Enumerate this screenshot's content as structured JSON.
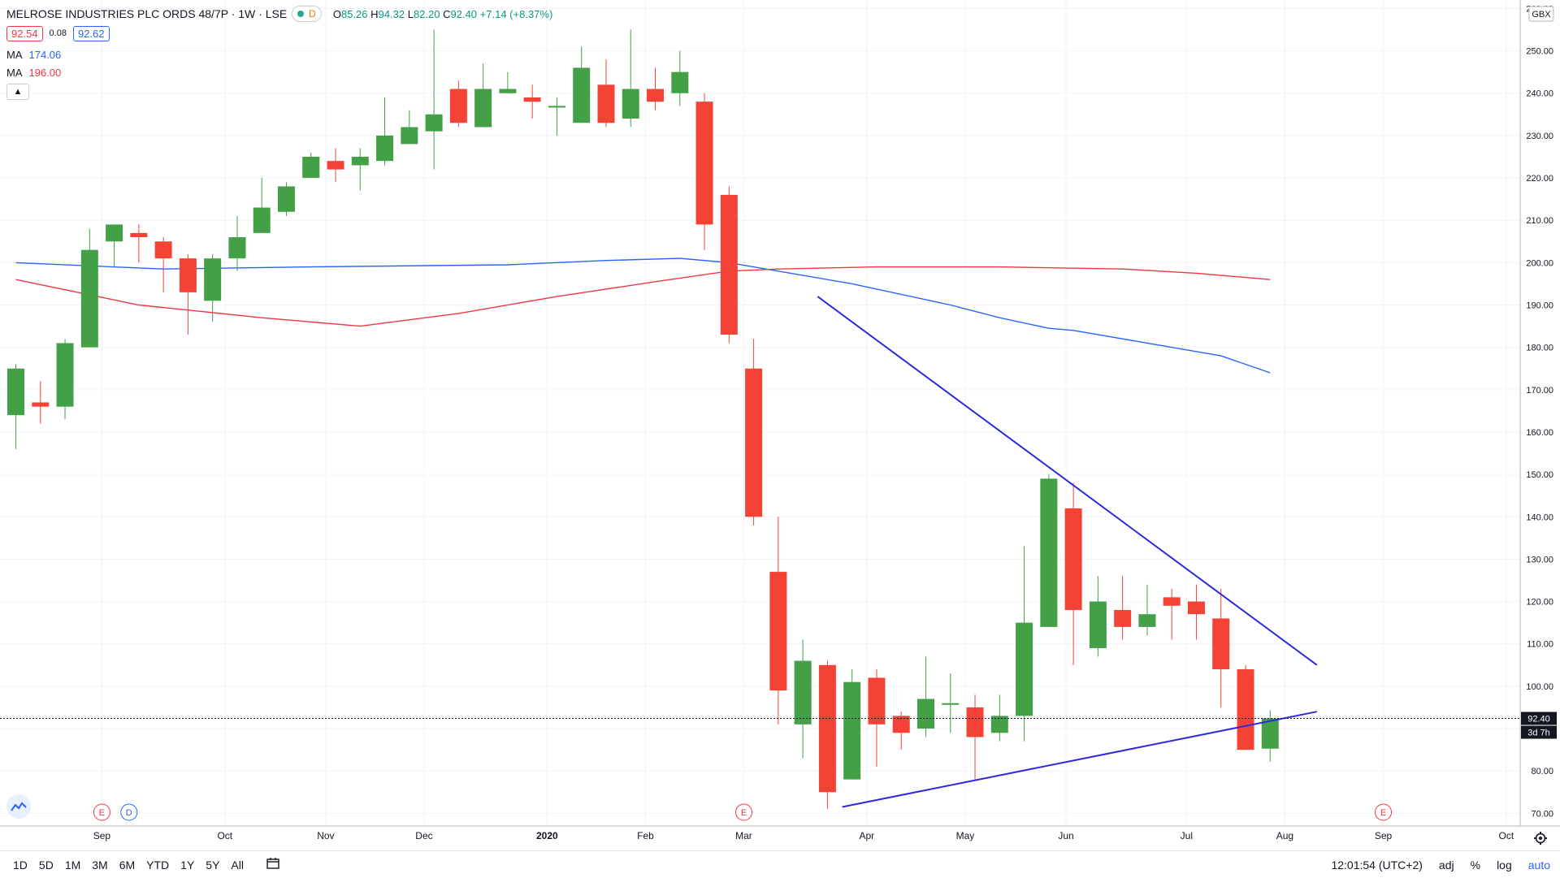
{
  "header": {
    "symbol": "MELROSE INDUSTRIES PLC ORDS 48/7P · 1W · LSE",
    "d_badge": "D",
    "ohlc": {
      "o_label": "O",
      "o": "85.26",
      "h_label": "H",
      "h": "94.32",
      "l_label": "L",
      "l": "82.20",
      "c_label": "C",
      "c": "92.40",
      "chg": "+7.14 (+8.37%)"
    },
    "bid": "92.54",
    "spread": "0.08",
    "ask": "92.62",
    "ma1_label": "MA",
    "ma1_value": "174.06",
    "ma1_color": "#2962ff",
    "ma2_label": "MA",
    "ma2_value": "196.00",
    "ma2_color": "#f23645"
  },
  "bottom_bar": {
    "timeframes": [
      "1D",
      "5D",
      "1M",
      "3M",
      "6M",
      "YTD",
      "1Y",
      "5Y",
      "All"
    ],
    "clock": "12:01:54 (UTC+2)",
    "adj": "adj",
    "percent": "%",
    "log": "log",
    "auto": "auto"
  },
  "colors": {
    "up": "#43a047",
    "down": "#f44336",
    "trendline": "#2b2bdd",
    "background": "#ffffff"
  },
  "chart_data": {
    "type": "candlestick",
    "currency": "GBX",
    "last_price_label": "92.40",
    "countdown_label": "3d 7h",
    "ylim": [
      67,
      262
    ],
    "y_ticks": [
      70,
      80,
      90,
      100,
      110,
      120,
      130,
      140,
      150,
      160,
      170,
      180,
      190,
      200,
      210,
      220,
      230,
      240,
      250,
      260
    ],
    "y_tick_labels": [
      "70.00",
      "80.00",
      "90.00",
      "100.00",
      "110.00",
      "120.00",
      "130.00",
      "140.00",
      "150.00",
      "160.00",
      "170.00",
      "180.00",
      "190.00",
      "200.00",
      "210.00",
      "220.00",
      "230.00",
      "240.00",
      "250.00",
      "260.00"
    ],
    "x_ticks": [
      {
        "label": "Sep",
        "i": 3.5,
        "bold": false
      },
      {
        "label": "Oct",
        "i": 8.5,
        "bold": false
      },
      {
        "label": "Nov",
        "i": 12.6,
        "bold": false
      },
      {
        "label": "Dec",
        "i": 16.6,
        "bold": false
      },
      {
        "label": "2020",
        "i": 21.6,
        "bold": true
      },
      {
        "label": "Feb",
        "i": 25.6,
        "bold": false
      },
      {
        "label": "Mar",
        "i": 29.6,
        "bold": false
      },
      {
        "label": "Apr",
        "i": 34.6,
        "bold": false
      },
      {
        "label": "May",
        "i": 38.6,
        "bold": false
      },
      {
        "label": "Jun",
        "i": 42.7,
        "bold": false
      },
      {
        "label": "Jul",
        "i": 47.6,
        "bold": false
      },
      {
        "label": "Aug",
        "i": 51.6,
        "bold": false
      },
      {
        "label": "Sep",
        "i": 55.6,
        "bold": false
      },
      {
        "label": "Oct",
        "i": 60.6,
        "bold": false
      }
    ],
    "candles": [
      {
        "o": 164,
        "h": 176,
        "l": 156,
        "c": 175
      },
      {
        "o": 167,
        "h": 172,
        "l": 162,
        "c": 166
      },
      {
        "o": 166,
        "h": 182,
        "l": 163,
        "c": 181
      },
      {
        "o": 180,
        "h": 208,
        "l": 180,
        "c": 203
      },
      {
        "o": 205,
        "h": 209,
        "l": 199,
        "c": 209
      },
      {
        "o": 207,
        "h": 209,
        "l": 200,
        "c": 206
      },
      {
        "o": 205,
        "h": 206,
        "l": 193,
        "c": 201
      },
      {
        "o": 201,
        "h": 202,
        "l": 183,
        "c": 193
      },
      {
        "o": 191,
        "h": 202,
        "l": 186,
        "c": 201
      },
      {
        "o": 201,
        "h": 211,
        "l": 198,
        "c": 206
      },
      {
        "o": 207,
        "h": 220,
        "l": 207,
        "c": 213
      },
      {
        "o": 212,
        "h": 219,
        "l": 211,
        "c": 218
      },
      {
        "o": 220,
        "h": 226,
        "l": 220,
        "c": 225
      },
      {
        "o": 224,
        "h": 227,
        "l": 219,
        "c": 222
      },
      {
        "o": 223,
        "h": 227,
        "l": 217,
        "c": 225
      },
      {
        "o": 224,
        "h": 239,
        "l": 223,
        "c": 230
      },
      {
        "o": 228,
        "h": 236,
        "l": 228,
        "c": 232
      },
      {
        "o": 231,
        "h": 255,
        "l": 222,
        "c": 235
      },
      {
        "o": 241,
        "h": 243,
        "l": 232,
        "c": 233
      },
      {
        "o": 232,
        "h": 247,
        "l": 232,
        "c": 241
      },
      {
        "o": 240,
        "h": 245,
        "l": 240,
        "c": 241
      },
      {
        "o": 239,
        "h": 242,
        "l": 234,
        "c": 238
      },
      {
        "o": 237,
        "h": 239,
        "l": 230,
        "c": 237
      },
      {
        "o": 233,
        "h": 251,
        "l": 233,
        "c": 246
      },
      {
        "o": 242,
        "h": 248,
        "l": 232,
        "c": 233
      },
      {
        "o": 234,
        "h": 255,
        "l": 232,
        "c": 241
      },
      {
        "o": 241,
        "h": 246,
        "l": 236,
        "c": 238
      },
      {
        "o": 240,
        "h": 250,
        "l": 237,
        "c": 245
      },
      {
        "o": 238,
        "h": 240,
        "l": 203,
        "c": 209
      },
      {
        "o": 216,
        "h": 218,
        "l": 181,
        "c": 183
      },
      {
        "o": 175,
        "h": 182,
        "l": 138,
        "c": 140
      },
      {
        "o": 127,
        "h": 140,
        "l": 91,
        "c": 99
      },
      {
        "o": 91,
        "h": 111,
        "l": 83,
        "c": 106
      },
      {
        "o": 105,
        "h": 106,
        "l": 71,
        "c": 75
      },
      {
        "o": 78,
        "h": 104,
        "l": 78,
        "c": 101
      },
      {
        "o": 102,
        "h": 104,
        "l": 81,
        "c": 91
      },
      {
        "o": 93,
        "h": 94,
        "l": 85,
        "c": 89
      },
      {
        "o": 90,
        "h": 107,
        "l": 88,
        "c": 97
      },
      {
        "o": 96,
        "h": 103,
        "l": 89,
        "c": 96
      },
      {
        "o": 95,
        "h": 98,
        "l": 78,
        "c": 88
      },
      {
        "o": 89,
        "h": 98,
        "l": 87,
        "c": 93
      },
      {
        "o": 93,
        "h": 133,
        "l": 87,
        "c": 115
      },
      {
        "o": 114,
        "h": 150,
        "l": 114,
        "c": 149
      },
      {
        "o": 142,
        "h": 148,
        "l": 105,
        "c": 118
      },
      {
        "o": 109,
        "h": 126,
        "l": 107,
        "c": 120
      },
      {
        "o": 118,
        "h": 126,
        "l": 111,
        "c": 114
      },
      {
        "o": 114,
        "h": 124,
        "l": 112,
        "c": 117
      },
      {
        "o": 121,
        "h": 123,
        "l": 111,
        "c": 119
      },
      {
        "o": 120,
        "h": 124,
        "l": 111,
        "c": 117
      },
      {
        "o": 116,
        "h": 123,
        "l": 95,
        "c": 104
      },
      {
        "o": 104,
        "h": 105,
        "l": 85,
        "c": 85
      },
      {
        "o": 85.26,
        "h": 94.32,
        "l": 82.2,
        "c": 92.4
      }
    ],
    "ma_series": [
      {
        "label": "MA",
        "value_label": "174.06",
        "color": "#2962ff",
        "points": [
          [
            0,
            200
          ],
          [
            6,
            198.5
          ],
          [
            12,
            199
          ],
          [
            20,
            199.5
          ],
          [
            24,
            200.5
          ],
          [
            27,
            201
          ],
          [
            29,
            200
          ],
          [
            31,
            198
          ],
          [
            34,
            195
          ],
          [
            38,
            190
          ],
          [
            40,
            187
          ],
          [
            42,
            184.5
          ],
          [
            43,
            184
          ],
          [
            46,
            181
          ],
          [
            49,
            178
          ],
          [
            51,
            174
          ]
        ]
      },
      {
        "label": "MA",
        "value_label": "196.00",
        "color": "#f23645",
        "points": [
          [
            0,
            196
          ],
          [
            5,
            190
          ],
          [
            10,
            187
          ],
          [
            14,
            185
          ],
          [
            18,
            188
          ],
          [
            22,
            192
          ],
          [
            26,
            195.5
          ],
          [
            29,
            198
          ],
          [
            31,
            198.5
          ],
          [
            35,
            199
          ],
          [
            40,
            199
          ],
          [
            45,
            198.5
          ],
          [
            48,
            197.5
          ],
          [
            51,
            196
          ]
        ]
      }
    ],
    "trendlines": [
      {
        "from": [
          32.6,
          192
        ],
        "to": [
          52.9,
          105
        ]
      },
      {
        "from": [
          33.6,
          71.5
        ],
        "to": [
          52.9,
          94
        ]
      }
    ],
    "events": [
      {
        "i": 3.5,
        "label": "E",
        "color": "#f23645"
      },
      {
        "i": 4.6,
        "label": "D",
        "color": "#2962ff"
      },
      {
        "i": 29.6,
        "label": "E",
        "color": "#f23645"
      },
      {
        "i": 55.6,
        "label": "E",
        "color": "#f23645"
      }
    ]
  }
}
